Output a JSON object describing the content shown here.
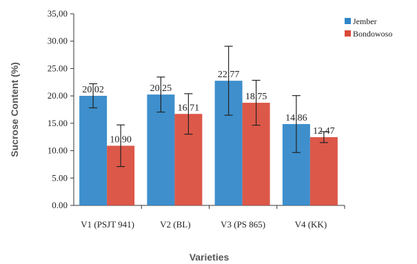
{
  "chart_data": {
    "type": "bar",
    "categories": [
      "V1 (PSJT 941)",
      "V2 (BL)",
      "V3 (PS 865)",
      "V4 (KK)"
    ],
    "series": [
      {
        "name": "Jember",
        "values": [
          20.02,
          20.25,
          22.77,
          14.86
        ],
        "errors": [
          2.2,
          3.2,
          6.3,
          5.2
        ],
        "color": "#2e86c8"
      },
      {
        "name": "Bondowoso",
        "values": [
          10.9,
          16.71,
          18.75,
          12.47
        ],
        "errors": [
          3.8,
          3.7,
          4.1,
          1.0
        ],
        "color": "#d94a3a"
      }
    ],
    "data_labels": [
      [
        "20.02",
        "20.25",
        "22.77",
        "14.86"
      ],
      [
        "10.90",
        "16.71",
        "18.75",
        "12.47"
      ]
    ],
    "xlabel": "Varieties",
    "ylabel": "Sucrose Content (%)",
    "ylim": [
      0,
      35
    ],
    "yticks": [
      0,
      5,
      10,
      15,
      20,
      25,
      30,
      35
    ],
    "ytick_labels": [
      "0.00",
      "5.00",
      "10.00",
      "15.00",
      "20.00",
      "25.00",
      "30.00",
      "35,00"
    ],
    "legend_position": "top-right",
    "grid": false
  }
}
